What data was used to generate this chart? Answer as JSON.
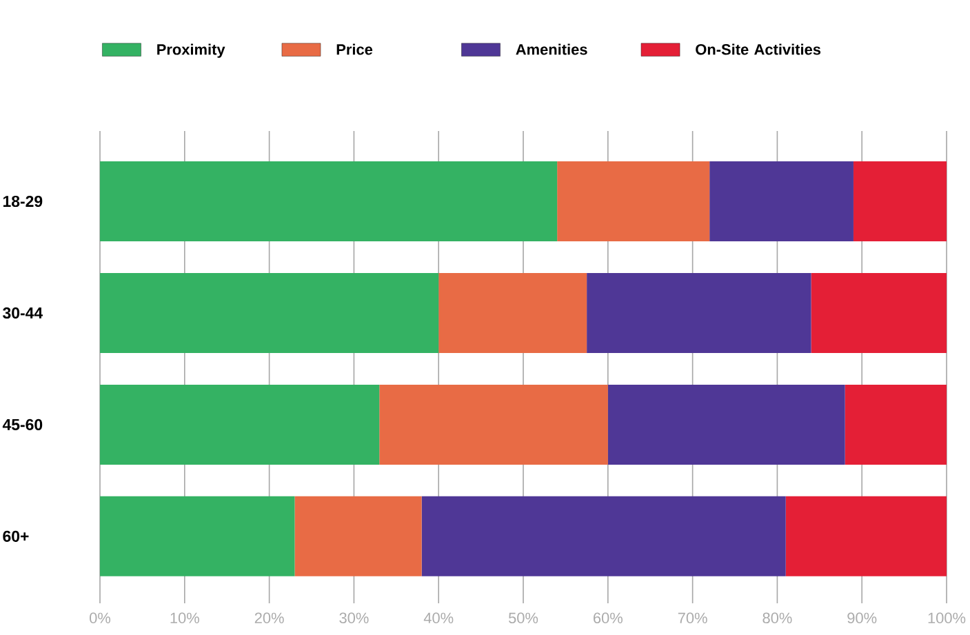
{
  "chart_data": {
    "type": "bar",
    "orientation": "horizontal",
    "stacked": true,
    "categories": [
      "18-29",
      "30-44",
      "45-60",
      "60+"
    ],
    "series": [
      {
        "name": "Proximity",
        "color": "#34b263",
        "values": [
          54,
          40,
          33,
          23
        ]
      },
      {
        "name": "Price",
        "color": "#e86b45",
        "values": [
          18,
          17.5,
          27,
          15
        ]
      },
      {
        "name": "Amenities",
        "color": "#4f3796",
        "values": [
          17,
          26.5,
          28,
          43
        ]
      },
      {
        "name": "On-Site Activities",
        "color": "#e41f36",
        "values": [
          11,
          16,
          12,
          19
        ]
      }
    ],
    "xlim": [
      0,
      100
    ],
    "xticks": [
      {
        "value": 0,
        "label": "0%"
      },
      {
        "value": 10,
        "label": "10%"
      },
      {
        "value": 20,
        "label": "20%"
      },
      {
        "value": 30,
        "label": "30%"
      },
      {
        "value": 40,
        "label": "40%"
      },
      {
        "value": 50,
        "label": "50%"
      },
      {
        "value": 60,
        "label": "60%"
      },
      {
        "value": 70,
        "label": "70%"
      },
      {
        "value": 80,
        "label": "80%"
      },
      {
        "value": 90,
        "label": "90%"
      },
      {
        "value": 100,
        "label": "100%"
      }
    ],
    "grid": "x",
    "legend": "top"
  }
}
